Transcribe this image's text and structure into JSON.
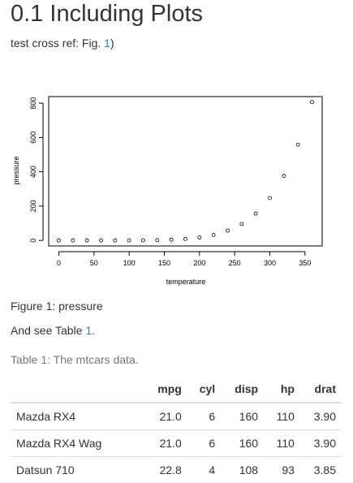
{
  "heading": {
    "number": "0.1",
    "title": "Including Plots"
  },
  "cross_ref": {
    "prefix": "test cross ref: Fig. ",
    "ref": "1",
    "suffix": ")"
  },
  "figure_caption": "Figure 1: pressure",
  "table_ref": {
    "prefix": "And see Table ",
    "ref": "1",
    "suffix": "."
  },
  "table": {
    "caption": "Table 1: The mtcars data.",
    "columns": [
      "",
      "mpg",
      "cyl",
      "disp",
      "hp",
      "drat"
    ],
    "rows": [
      [
        "Mazda RX4",
        "21.0",
        "6",
        "160",
        "110",
        "3.90"
      ],
      [
        "Mazda RX4 Wag",
        "21.0",
        "6",
        "160",
        "110",
        "3.90"
      ],
      [
        "Datsun 710",
        "22.8",
        "4",
        "108",
        "93",
        "3.85"
      ]
    ]
  },
  "chart_data": {
    "type": "scatter",
    "xlabel": "temperature",
    "ylabel": "pressure",
    "x": [
      0,
      20,
      40,
      60,
      80,
      100,
      120,
      140,
      160,
      180,
      200,
      220,
      240,
      260,
      280,
      300,
      320,
      340,
      360
    ],
    "y": [
      0.0002,
      0.0012,
      0.006,
      0.03,
      0.09,
      0.27,
      0.75,
      1.85,
      4.2,
      8.8,
      17.3,
      32.1,
      57.0,
      96.0,
      157.0,
      247.0,
      376.0,
      558.0,
      806.0
    ],
    "xticks": [
      0,
      50,
      100,
      150,
      200,
      250,
      300,
      350
    ],
    "yticks": [
      0,
      200,
      400,
      600,
      800
    ],
    "xlim": [
      -14.4,
      374.4
    ],
    "ylim": [
      -32.24,
      838.24
    ],
    "marker": "open-circle",
    "grid": false,
    "box": true
  }
}
